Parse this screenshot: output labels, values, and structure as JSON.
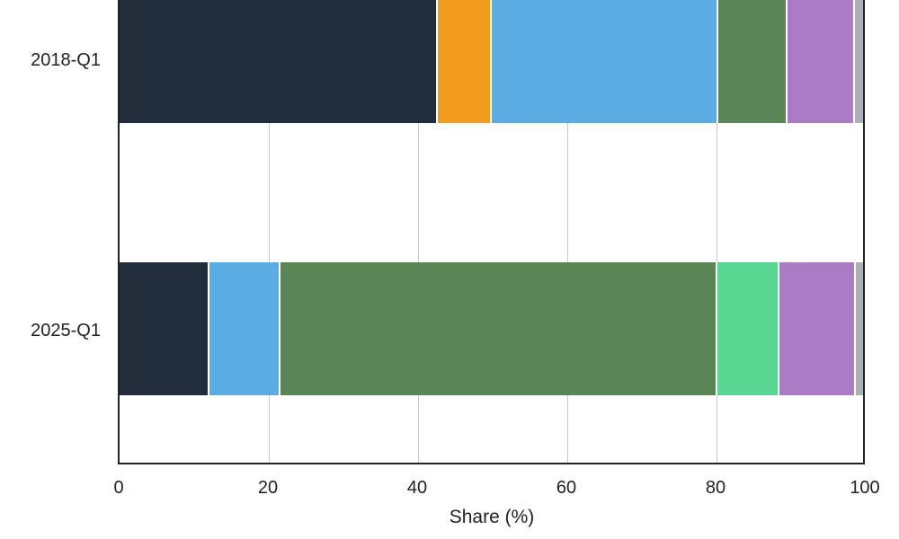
{
  "chart_data": {
    "type": "bar",
    "orientation": "horizontal",
    "stacked": true,
    "title": "",
    "xlabel": "Share (%)",
    "ylabel": "",
    "xlim": [
      0,
      100
    ],
    "xticks": [
      0,
      20,
      40,
      60,
      80,
      100
    ],
    "grid": true,
    "legend": "not visible",
    "categories": [
      "2018-Q1",
      "2025-Q1"
    ],
    "bars": [
      {
        "category": "2018-Q1",
        "segments": [
          {
            "color": "#212d3b",
            "value": 42.8
          },
          {
            "color": "#f09c1c",
            "value": 7.3
          },
          {
            "color": "#5aace2",
            "value": 30.4
          },
          {
            "color": "#5a8656",
            "value": 9.4
          },
          {
            "color": "#ab7cc4",
            "value": 9.0
          },
          {
            "color": "#a9b0b8",
            "value": 1.1
          }
        ]
      },
      {
        "category": "2025-Q1",
        "segments": [
          {
            "color": "#212d3b",
            "value": 12.1
          },
          {
            "color": "#5aace2",
            "value": 9.6
          },
          {
            "color": "#5a8656",
            "value": 58.7
          },
          {
            "color": "#58d590",
            "value": 8.3
          },
          {
            "color": "#ab7cc4",
            "value": 10.3
          },
          {
            "color": "#a9b0b8",
            "value": 1.0
          }
        ]
      }
    ]
  },
  "axis": {
    "x_ticks": [
      "0",
      "20",
      "40",
      "60",
      "80",
      "100"
    ],
    "x_label": "Share (%)",
    "y_labels": [
      "2018-Q1",
      "2025-Q1"
    ]
  }
}
